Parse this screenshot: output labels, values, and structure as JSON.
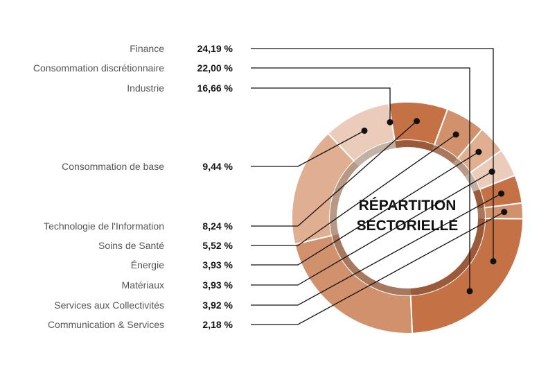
{
  "chart_data": {
    "type": "pie",
    "title_lines": [
      "RÉPARTITION",
      "SECTORIELLE"
    ],
    "categories": [
      "Finance",
      "Consommation discrétionnaire",
      "Industrie",
      "Consommation de base",
      "Technologie de l'Information",
      "Soins de Santé",
      "Énergie",
      "Matériaux",
      "Services aux Collectivités",
      "Communication & Services"
    ],
    "values": [
      24.19,
      22.0,
      16.66,
      9.44,
      8.24,
      5.52,
      3.93,
      3.93,
      3.92,
      2.18
    ],
    "value_labels": [
      "24,19 %",
      "22,00 %",
      "16,66 %",
      "9,44 %",
      "8,24 %",
      "5,52 %",
      "3,93 %",
      "3,93 %",
      "3,92 %",
      "2,18 %"
    ],
    "legend": "left",
    "colors": {
      "outer": [
        "#c57146",
        "#d0916c",
        "#e0af91",
        "#ebcbb9",
        "#c57146",
        "#d0916c",
        "#e0af91",
        "#ebcbb9",
        "#c57146",
        "#d0916c"
      ],
      "inner": [
        "#9b5a3a",
        "#a8785e",
        "#b89986",
        "#c4b1a6",
        "#9b5a3a",
        "#a8785e",
        "#b89986",
        "#c4b1a6",
        "#9b5a3a",
        "#a8785e"
      ]
    }
  }
}
